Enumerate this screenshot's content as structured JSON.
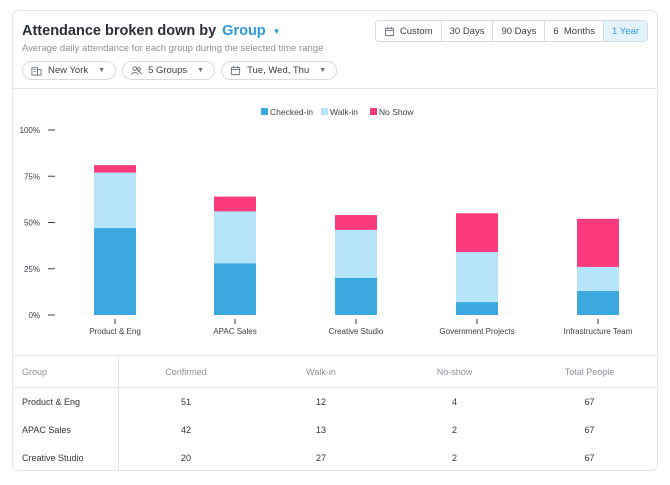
{
  "header": {
    "title": "Attendance broken down by",
    "group_selector": "Group",
    "subtitle": "Average daily attendance for each group during the selected time range"
  },
  "ranges": [
    {
      "label": "Custom",
      "icon": "calendar-icon",
      "active": false
    },
    {
      "label": "30 Days",
      "active": false
    },
    {
      "label": "90 Days",
      "active": false
    },
    {
      "label": "6  Months",
      "active": false
    },
    {
      "label": "1 Year",
      "active": true
    }
  ],
  "filters": {
    "location": {
      "label": "New York",
      "icon": "building-icon"
    },
    "groups": {
      "label": "5 Groups",
      "icon": "people-icon"
    },
    "days": {
      "label": "Tue, Wed, Thu",
      "icon": "calendar-icon"
    }
  },
  "colors": {
    "checked_in": "#3ba9e0",
    "walk_in": "#b5e4fb",
    "no_show": "#fc3b7e",
    "accent": "#2b9ad8"
  },
  "chart_data": {
    "type": "bar",
    "stacked": true,
    "categories": [
      "Product & Eng",
      "APAC Sales",
      "Creative Studio",
      "Government Projects",
      "Infrastructure Team"
    ],
    "series": [
      {
        "name": "Checked-in",
        "values": [
          47,
          28,
          20,
          7,
          13
        ]
      },
      {
        "name": "Walk-in",
        "values": [
          30,
          28,
          26,
          27,
          13
        ]
      },
      {
        "name": "No Show",
        "values": [
          4,
          8,
          8,
          21,
          26
        ]
      }
    ],
    "yticks": [
      "0%",
      "25%",
      "50%",
      "75%",
      "100%"
    ],
    "ylim": [
      0,
      100
    ],
    "legend": "top-center",
    "grid": false
  },
  "table": {
    "headers": [
      "Group",
      "Confirmed",
      "Walk-in",
      "No-show",
      "Total People"
    ],
    "rows": [
      [
        "Product & Eng",
        "51",
        "12",
        "4",
        "67"
      ],
      [
        "APAC Sales",
        "42",
        "13",
        "2",
        "67"
      ],
      [
        "Creative Studio",
        "20",
        "27",
        "2",
        "67"
      ]
    ]
  }
}
